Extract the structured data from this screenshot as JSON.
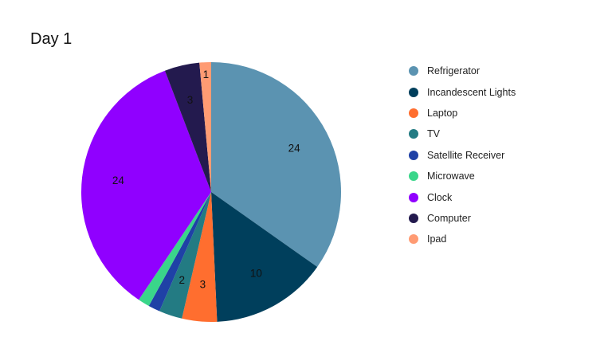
{
  "chart_data": {
    "type": "pie",
    "title": "Day 1",
    "legend_position": "right",
    "slices": [
      {
        "name": "Refrigerator",
        "value": 24,
        "color": "#5b93b1",
        "label": "24"
      },
      {
        "name": "Incandescent Lights",
        "value": 10,
        "color": "#003f5c",
        "label": "10"
      },
      {
        "name": "Laptop",
        "value": 3,
        "color": "#ff6e2f",
        "label": "3"
      },
      {
        "name": "TV",
        "value": 2,
        "color": "#237b83",
        "label": "2"
      },
      {
        "name": "Satellite Receiver",
        "value": 1,
        "color": "#1f41a6",
        "label": ""
      },
      {
        "name": "Microwave",
        "value": 1,
        "color": "#3ad68a",
        "label": ""
      },
      {
        "name": "Clock",
        "value": 24,
        "color": "#9000ff",
        "label": "24"
      },
      {
        "name": "Computer",
        "value": 3,
        "color": "#231a4e",
        "label": "3"
      },
      {
        "name": "Ipad",
        "value": 1,
        "color": "#ff9b73",
        "label": "1"
      }
    ]
  }
}
